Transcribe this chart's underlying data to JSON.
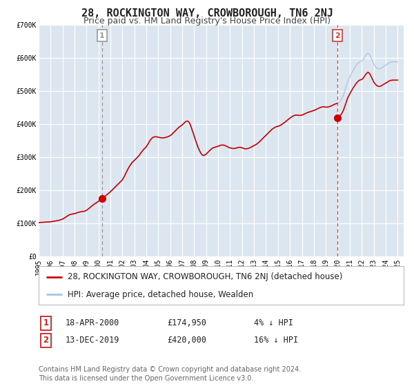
{
  "title": "28, ROCKINGTON WAY, CROWBOROUGH, TN6 2NJ",
  "subtitle": "Price paid vs. HM Land Registry's House Price Index (HPI)",
  "outer_bg_color": "#ffffff",
  "plot_bg_color": "#dce6f0",
  "grid_color": "#ffffff",
  "ylim": [
    0,
    700000
  ],
  "xlim_start": 1995.0,
  "xlim_end": 2025.5,
  "yticks": [
    0,
    100000,
    200000,
    300000,
    400000,
    500000,
    600000,
    700000
  ],
  "ytick_labels": [
    "£0",
    "£100K",
    "£200K",
    "£300K",
    "£400K",
    "£500K",
    "£600K",
    "£700K"
  ],
  "xticks": [
    1995,
    1996,
    1997,
    1998,
    1999,
    2000,
    2001,
    2002,
    2003,
    2004,
    2005,
    2006,
    2007,
    2008,
    2009,
    2010,
    2011,
    2012,
    2013,
    2014,
    2015,
    2016,
    2017,
    2018,
    2019,
    2020,
    2021,
    2022,
    2023,
    2024,
    2025
  ],
  "sale1_x": 2000.29,
  "sale1_y": 174950,
  "sale2_x": 2019.95,
  "sale2_y": 420000,
  "sale_color": "#cc0000",
  "sale_marker_size": 8,
  "hpi_line_color": "#a8c4e0",
  "price_line_color": "#cc0000",
  "vline1_color": "#999999",
  "vline2_color": "#dd3333",
  "legend_label_price": "28, ROCKINGTON WAY, CROWBOROUGH, TN6 2NJ (detached house)",
  "legend_label_hpi": "HPI: Average price, detached house, Wealden",
  "annotation1_date": "18-APR-2000",
  "annotation1_price": "£174,950",
  "annotation1_hpi": "4% ↓ HPI",
  "annotation2_date": "13-DEC-2019",
  "annotation2_price": "£420,000",
  "annotation2_hpi": "16% ↓ HPI",
  "footer": "Contains HM Land Registry data © Crown copyright and database right 2024.\nThis data is licensed under the Open Government Licence v3.0.",
  "title_fontsize": 11,
  "subtitle_fontsize": 9,
  "tick_fontsize": 7,
  "legend_fontsize": 8.5,
  "annotation_fontsize": 8.5,
  "footer_fontsize": 7
}
